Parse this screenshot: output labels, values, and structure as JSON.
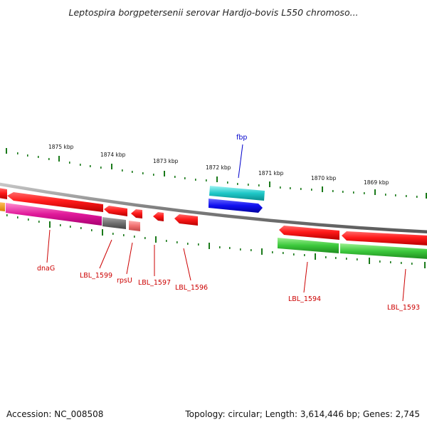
{
  "title": "Leptospira borgpetersenii serovar Hardjo-bovis L550 chromoso...",
  "footer": {
    "accession": "Accession: NC_008508",
    "topology": "Topology: circular; Length: 3,614,446 bp; Genes: 2,745"
  },
  "colors": {
    "backbone": "#888888",
    "ticks": "#1a7a1a",
    "label_red": "#cc0000",
    "label_blue": "#0000cc"
  },
  "scale": {
    "labels": [
      "1875 kbp",
      "1874 kbp",
      "1873 kbp",
      "1872 kbp",
      "1871 kbp",
      "1870 kbp",
      "1869 kbp"
    ]
  },
  "genes": {
    "dnaG": "dnaG",
    "LBL_1599": "LBL_1599",
    "rpsU": "rpsU",
    "LBL_1597": "LBL_1597",
    "LBL_1596": "LBL_1596",
    "LBL_1594": "LBL_1594",
    "LBL_1593": "LBL_1593",
    "fbp": "fbp"
  }
}
